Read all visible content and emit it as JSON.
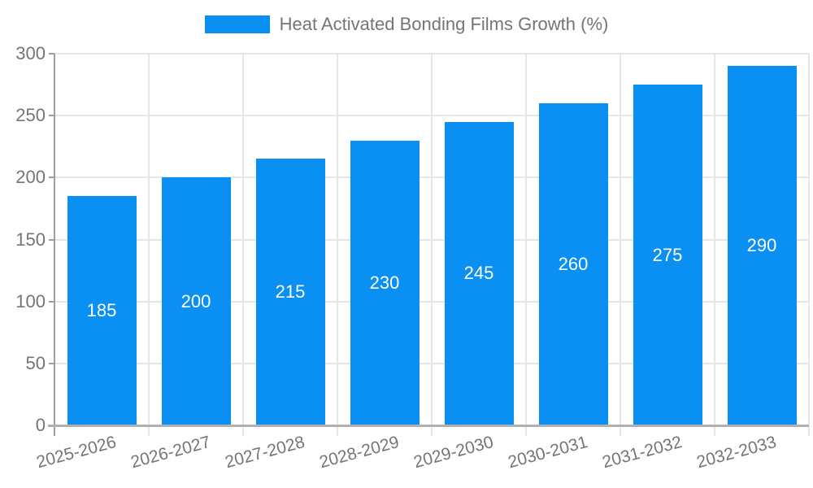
{
  "legend": {
    "label": "Heat Activated Bonding Films Growth (%)",
    "swatch_color": "#0a8ff2"
  },
  "chart_data": {
    "type": "bar",
    "title": "",
    "categories": [
      "2025-2026",
      "2026-2027",
      "2027-2028",
      "2028-2029",
      "2029-2030",
      "2030-2031",
      "2031-2032",
      "2032-2033"
    ],
    "series": [
      {
        "name": "Heat Activated Bonding Films Growth (%)",
        "color": "#0a8ff2",
        "values": [
          185,
          200,
          215,
          230,
          245,
          260,
          275,
          290
        ]
      }
    ],
    "xlabel": "",
    "ylabel": "",
    "ylim": [
      0,
      300
    ],
    "yticks": [
      0,
      50,
      100,
      150,
      200,
      250,
      300
    ],
    "grid": true,
    "legend_position": "top",
    "value_labels_inside_bars": true,
    "colors": {
      "bar": "#0a8ff2",
      "value_label": "#ffffff",
      "axis_text": "#757575",
      "grid_line": "#e6e6e6",
      "axis_line": "#9e9e9e",
      "baseline": "#b0b0b0",
      "background": "#ffffff"
    }
  }
}
